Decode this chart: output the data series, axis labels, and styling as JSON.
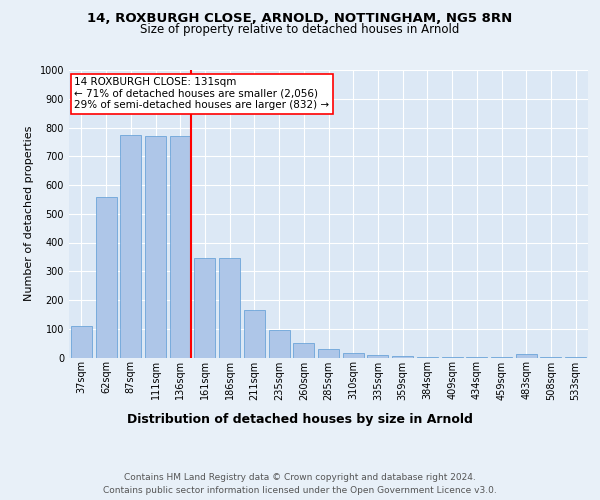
{
  "title": "14, ROXBURGH CLOSE, ARNOLD, NOTTINGHAM, NG5 8RN",
  "subtitle": "Size of property relative to detached houses in Arnold",
  "xlabel": "Distribution of detached houses by size in Arnold",
  "ylabel": "Number of detached properties",
  "categories": [
    "37sqm",
    "62sqm",
    "87sqm",
    "111sqm",
    "136sqm",
    "161sqm",
    "186sqm",
    "211sqm",
    "235sqm",
    "260sqm",
    "285sqm",
    "310sqm",
    "335sqm",
    "359sqm",
    "384sqm",
    "409sqm",
    "434sqm",
    "459sqm",
    "483sqm",
    "508sqm",
    "533sqm"
  ],
  "values": [
    110,
    560,
    775,
    770,
    770,
    345,
    345,
    165,
    95,
    50,
    30,
    15,
    8,
    5,
    3,
    2,
    1,
    1,
    12,
    1,
    1
  ],
  "bar_color": "#aec6e8",
  "bar_edge_color": "#5b9bd5",
  "redline_index": 4,
  "redline_label": "14 ROXBURGH CLOSE: 131sqm",
  "annotation_line1": "← 71% of detached houses are smaller (2,056)",
  "annotation_line2": "29% of semi-detached houses are larger (832) →",
  "ylim": [
    0,
    1000
  ],
  "yticks": [
    0,
    100,
    200,
    300,
    400,
    500,
    600,
    700,
    800,
    900,
    1000
  ],
  "background_color": "#e8f0f8",
  "plot_bg_color": "#dce8f5",
  "grid_color": "#ffffff",
  "footnote": "Contains HM Land Registry data © Crown copyright and database right 2024.\nContains public sector information licensed under the Open Government Licence v3.0.",
  "title_fontsize": 9.5,
  "subtitle_fontsize": 8.5,
  "xlabel_fontsize": 9,
  "ylabel_fontsize": 8,
  "tick_fontsize": 7,
  "annotation_fontsize": 7.5,
  "footnote_fontsize": 6.5
}
